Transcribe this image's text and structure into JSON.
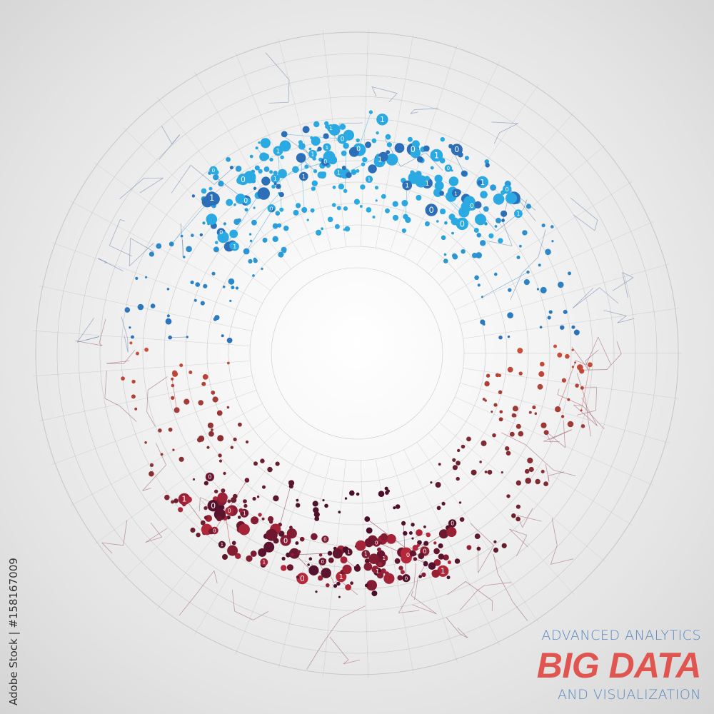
{
  "headline": {
    "line1": "ADVANCED ANALYTICS",
    "title": "BIG DATA",
    "line2": "AND VISUALIZATION"
  },
  "watermark": "Adobe Stock | #158167009",
  "binary_digits": [
    "0",
    "1"
  ],
  "colors": {
    "top_cluster": "#2aa9e2",
    "top_cluster_dark": "#2c6fb8",
    "bottom_cluster": "#b8283a",
    "bottom_cluster_dark": "#4a0f2a",
    "side_red": "#d0503a",
    "title_red": "#e05550",
    "subtitle_blue": "#5b8ac0",
    "grid": "#b8b8b8"
  }
}
